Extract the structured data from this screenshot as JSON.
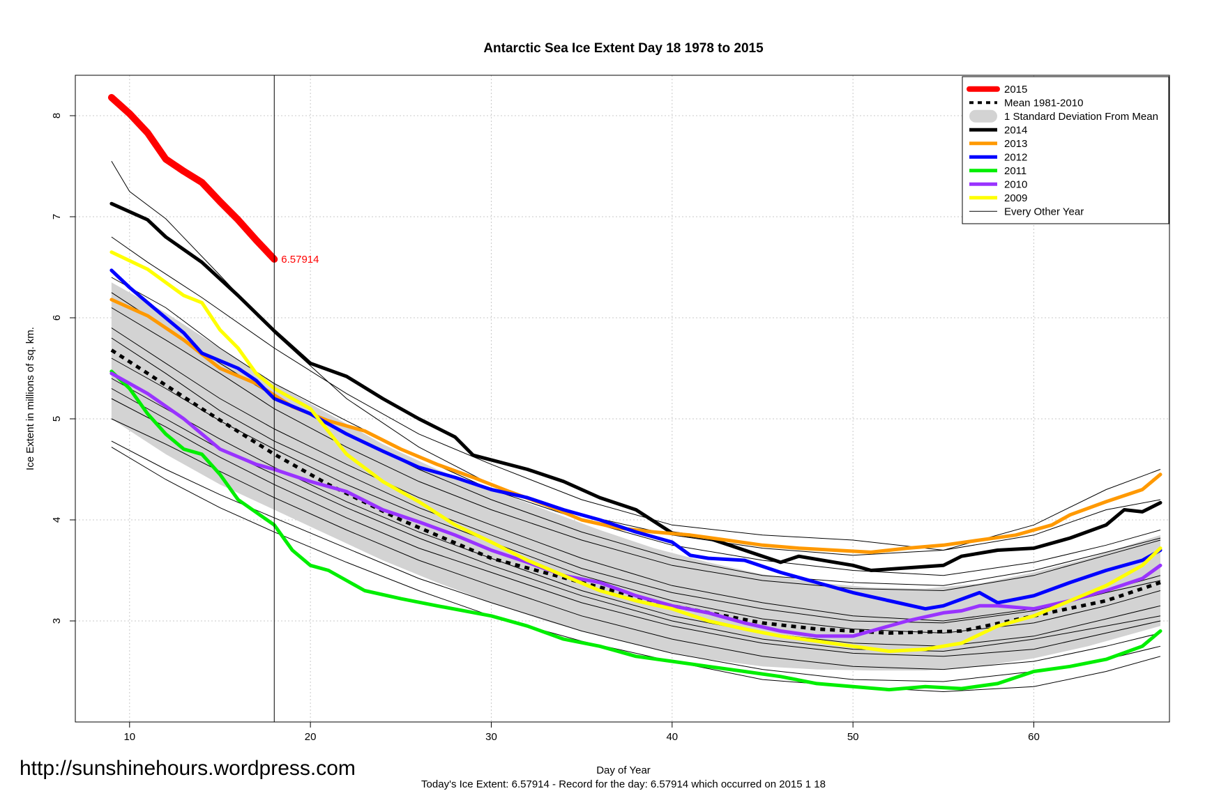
{
  "page": {
    "watermark": "http://sunshinehours.wordpress.com",
    "footer": "Today's Ice Extent: 6.57914  - Record for the day: 6.57914 which occurred on 2015 1 18"
  },
  "chart_data": {
    "type": "line",
    "title": "Antarctic Sea Ice Extent Day 18 1978 to 2015",
    "xlabel": "Day of Year",
    "ylabel": "Ice Extent in millions of sq. km.",
    "xlim": [
      7,
      67.5
    ],
    "ylim": [
      2,
      8.4
    ],
    "xticks": [
      10,
      20,
      30,
      40,
      50,
      60
    ],
    "yticks": [
      3,
      4,
      5,
      6,
      7,
      8
    ],
    "grid": true,
    "legend_position": "top-right",
    "current_day": 18,
    "end_label": "6.57914",
    "colors": {
      "2015": "#ff0000",
      "2014": "#000000",
      "2013": "#ff9900",
      "2012": "#0000ff",
      "2011": "#00ee00",
      "2010": "#9933ff",
      "2009": "#ffff00",
      "band": "#d3d3d3",
      "thin": "#000000"
    },
    "legend": [
      {
        "label": "2015",
        "style": "thick",
        "color": "#ff0000"
      },
      {
        "label": "Mean 1981-2010",
        "style": "dashed",
        "color": "#000000"
      },
      {
        "label": "1 Standard Deviation From Mean",
        "style": "band",
        "color": "#d3d3d3"
      },
      {
        "label": "2014",
        "style": "line",
        "color": "#000000"
      },
      {
        "label": "2013",
        "style": "line",
        "color": "#ff9900"
      },
      {
        "label": "2012",
        "style": "line",
        "color": "#0000ff"
      },
      {
        "label": "2011",
        "style": "line",
        "color": "#00ee00"
      },
      {
        "label": "2010",
        "style": "line",
        "color": "#9933ff"
      },
      {
        "label": "2009",
        "style": "line",
        "color": "#ffff00"
      },
      {
        "label": "Every Other Year",
        "style": "thin",
        "color": "#000000"
      }
    ],
    "band": {
      "x": [
        9,
        12,
        15,
        18,
        21,
        24,
        27,
        30,
        33,
        36,
        39,
        42,
        45,
        48,
        51,
        54,
        57,
        60,
        63,
        67
      ],
      "upper": [
        6.35,
        6.05,
        5.7,
        5.35,
        5.05,
        4.75,
        4.5,
        4.3,
        4.1,
        3.9,
        3.72,
        3.58,
        3.46,
        3.38,
        3.33,
        3.32,
        3.37,
        3.48,
        3.62,
        3.85
      ],
      "lower": [
        5.0,
        4.65,
        4.35,
        4.1,
        3.85,
        3.6,
        3.38,
        3.18,
        3.0,
        2.85,
        2.72,
        2.62,
        2.55,
        2.52,
        2.51,
        2.51,
        2.55,
        2.63,
        2.75,
        2.95
      ]
    },
    "mean": {
      "x": [
        9,
        11,
        14,
        18,
        21,
        25,
        30,
        35,
        40,
        45,
        48,
        52,
        56,
        60,
        64,
        67
      ],
      "y": [
        5.68,
        5.45,
        5.1,
        4.65,
        4.35,
        4.0,
        3.62,
        3.38,
        3.15,
        2.98,
        2.92,
        2.88,
        2.9,
        3.05,
        3.2,
        3.38
      ]
    },
    "series": [
      {
        "name": "2015",
        "x": [
          9,
          10,
          11,
          12,
          13,
          14,
          15,
          16,
          17,
          18
        ],
        "y": [
          8.18,
          8.02,
          7.83,
          7.57,
          7.45,
          7.34,
          7.15,
          6.97,
          6.77,
          6.579
        ]
      },
      {
        "name": "2014",
        "x": [
          9,
          11,
          12,
          14,
          16,
          18,
          20,
          22,
          24,
          26,
          28,
          29,
          32,
          34,
          36,
          38,
          40,
          42,
          44,
          46,
          47,
          50,
          51,
          55,
          56,
          58,
          60,
          62,
          64,
          65,
          66,
          67
        ],
        "y": [
          7.13,
          6.97,
          6.8,
          6.55,
          6.22,
          5.87,
          5.55,
          5.42,
          5.2,
          5.0,
          4.82,
          4.64,
          4.5,
          4.38,
          4.22,
          4.1,
          3.87,
          3.82,
          3.7,
          3.58,
          3.64,
          3.55,
          3.5,
          3.55,
          3.64,
          3.7,
          3.72,
          3.82,
          3.95,
          4.1,
          4.08,
          4.17
        ]
      },
      {
        "name": "2013",
        "x": [
          9,
          11,
          13,
          15,
          17,
          19,
          21,
          23,
          25,
          27,
          29,
          31,
          33,
          35,
          37,
          39,
          41,
          43,
          45,
          47,
          49,
          51,
          53,
          55,
          57,
          59,
          61,
          62,
          64,
          66,
          67
        ],
        "y": [
          6.18,
          6.02,
          5.78,
          5.5,
          5.35,
          5.12,
          4.98,
          4.88,
          4.7,
          4.55,
          4.42,
          4.28,
          4.15,
          4.0,
          3.92,
          3.88,
          3.85,
          3.8,
          3.75,
          3.72,
          3.7,
          3.68,
          3.72,
          3.75,
          3.8,
          3.85,
          3.95,
          4.05,
          4.18,
          4.3,
          4.45
        ]
      },
      {
        "name": "2012",
        "x": [
          9,
          10,
          11,
          13,
          14,
          16,
          17,
          18,
          20,
          22,
          24,
          26,
          28,
          30,
          32,
          34,
          36,
          38,
          40,
          41,
          42,
          44,
          46,
          48,
          50,
          52,
          54,
          55,
          57,
          58,
          60,
          62,
          64,
          66,
          67
        ],
        "y": [
          6.47,
          6.3,
          6.15,
          5.85,
          5.65,
          5.5,
          5.38,
          5.2,
          5.05,
          4.85,
          4.68,
          4.52,
          4.42,
          4.3,
          4.22,
          4.1,
          4.0,
          3.88,
          3.78,
          3.65,
          3.62,
          3.6,
          3.48,
          3.38,
          3.28,
          3.2,
          3.12,
          3.15,
          3.28,
          3.18,
          3.25,
          3.38,
          3.5,
          3.6,
          3.7
        ]
      },
      {
        "name": "2011",
        "x": [
          9,
          10,
          11,
          12,
          13,
          14,
          15,
          16,
          18,
          19,
          20,
          21,
          22,
          23,
          25,
          27,
          30,
          32,
          34,
          36,
          38,
          40,
          42,
          44,
          46,
          48,
          50,
          52,
          54,
          56,
          58,
          60,
          62,
          64,
          66,
          67
        ],
        "y": [
          5.47,
          5.3,
          5.05,
          4.85,
          4.7,
          4.65,
          4.45,
          4.2,
          3.95,
          3.7,
          3.55,
          3.5,
          3.4,
          3.3,
          3.22,
          3.15,
          3.05,
          2.95,
          2.82,
          2.75,
          2.65,
          2.6,
          2.55,
          2.5,
          2.45,
          2.38,
          2.35,
          2.32,
          2.35,
          2.33,
          2.38,
          2.5,
          2.55,
          2.62,
          2.75,
          2.9
        ]
      },
      {
        "name": "2010",
        "x": [
          9,
          11,
          13,
          15,
          17,
          18,
          20,
          22,
          24,
          26,
          28,
          30,
          32,
          34,
          36,
          38,
          40,
          42,
          44,
          46,
          48,
          50,
          51,
          53,
          55,
          56,
          57,
          58,
          60,
          62,
          64,
          66,
          67
        ],
        "y": [
          5.45,
          5.25,
          5.0,
          4.7,
          4.55,
          4.5,
          4.38,
          4.28,
          4.1,
          3.98,
          3.85,
          3.7,
          3.58,
          3.45,
          3.38,
          3.25,
          3.15,
          3.08,
          2.98,
          2.9,
          2.85,
          2.85,
          2.9,
          3.0,
          3.08,
          3.1,
          3.15,
          3.15,
          3.12,
          3.2,
          3.3,
          3.42,
          3.55
        ]
      },
      {
        "name": "2009",
        "x": [
          9,
          11,
          13,
          14,
          15,
          16,
          17,
          18,
          20,
          22,
          24,
          26,
          28,
          30,
          32,
          34,
          36,
          38,
          40,
          42,
          44,
          46,
          48,
          50,
          52,
          54,
          56,
          58,
          60,
          62,
          64,
          66,
          67
        ],
        "y": [
          6.65,
          6.48,
          6.22,
          6.15,
          5.88,
          5.7,
          5.45,
          5.3,
          5.1,
          4.65,
          4.38,
          4.18,
          3.95,
          3.78,
          3.6,
          3.45,
          3.3,
          3.2,
          3.12,
          3.0,
          2.92,
          2.85,
          2.8,
          2.75,
          2.7,
          2.72,
          2.78,
          2.95,
          3.05,
          3.2,
          3.35,
          3.55,
          3.72
        ]
      }
    ],
    "other_years": [
      {
        "x": [
          9,
          10,
          12,
          15,
          18,
          22,
          26,
          30,
          35,
          40,
          45,
          50,
          55,
          60,
          64,
          67
        ],
        "y": [
          7.55,
          7.25,
          6.98,
          6.42,
          5.85,
          5.2,
          4.72,
          4.35,
          4.05,
          3.85,
          3.72,
          3.65,
          3.7,
          3.95,
          4.3,
          4.5
        ]
      },
      {
        "x": [
          9,
          11,
          14,
          18,
          22,
          26,
          30,
          35,
          40,
          45,
          50,
          55,
          60,
          64,
          67
        ],
        "y": [
          6.8,
          6.55,
          6.2,
          5.7,
          5.25,
          4.85,
          4.55,
          4.2,
          3.95,
          3.85,
          3.8,
          3.7,
          3.85,
          4.1,
          4.2
        ]
      },
      {
        "x": [
          9,
          12,
          15,
          18,
          22,
          26,
          30,
          35,
          40,
          45,
          50,
          55,
          60,
          64,
          67
        ],
        "y": [
          6.4,
          6.1,
          5.7,
          5.35,
          4.98,
          4.62,
          4.3,
          4.0,
          3.75,
          3.6,
          3.5,
          3.45,
          3.58,
          3.75,
          3.9
        ]
      },
      {
        "x": [
          9,
          12,
          15,
          18,
          22,
          26,
          30,
          35,
          40,
          45,
          50,
          55,
          60,
          64,
          67
        ],
        "y": [
          6.1,
          5.78,
          5.45,
          5.1,
          4.72,
          4.38,
          4.1,
          3.8,
          3.55,
          3.4,
          3.32,
          3.3,
          3.45,
          3.65,
          3.8
        ]
      },
      {
        "x": [
          9,
          12,
          15,
          18,
          22,
          26,
          30,
          35,
          40,
          45,
          50,
          55,
          60,
          64,
          67
        ],
        "y": [
          5.9,
          5.55,
          5.2,
          4.9,
          4.55,
          4.22,
          3.95,
          3.62,
          3.35,
          3.18,
          3.05,
          3.0,
          3.12,
          3.3,
          3.45
        ]
      },
      {
        "x": [
          9,
          12,
          15,
          18,
          22,
          26,
          30,
          35,
          40,
          45,
          50,
          55,
          60,
          64,
          67
        ],
        "y": [
          5.6,
          5.3,
          4.98,
          4.7,
          4.35,
          4.05,
          3.78,
          3.45,
          3.2,
          3.02,
          2.92,
          2.88,
          2.98,
          3.15,
          3.3
        ]
      },
      {
        "x": [
          9,
          12,
          15,
          18,
          22,
          26,
          30,
          35,
          40,
          45,
          50,
          55,
          60,
          64,
          67
        ],
        "y": [
          5.4,
          5.1,
          4.8,
          4.52,
          4.18,
          3.88,
          3.62,
          3.3,
          3.05,
          2.88,
          2.78,
          2.75,
          2.85,
          3.02,
          3.15
        ]
      },
      {
        "x": [
          9,
          12,
          15,
          18,
          22,
          26,
          30,
          35,
          40,
          45,
          50,
          55,
          60,
          64,
          67
        ],
        "y": [
          5.2,
          4.92,
          4.62,
          4.35,
          4.02,
          3.72,
          3.48,
          3.18,
          2.95,
          2.78,
          2.68,
          2.65,
          2.72,
          2.88,
          3.0
        ]
      },
      {
        "x": [
          9,
          12,
          15,
          18,
          22,
          26,
          30,
          35,
          40,
          45,
          50,
          55,
          60,
          64,
          67
        ],
        "y": [
          5.0,
          4.75,
          4.48,
          4.22,
          3.9,
          3.6,
          3.35,
          3.05,
          2.82,
          2.65,
          2.55,
          2.52,
          2.6,
          2.75,
          2.88
        ]
      },
      {
        "x": [
          9,
          12,
          15,
          18,
          22,
          26,
          30,
          35,
          40,
          45,
          50,
          55,
          60,
          64,
          67
        ],
        "y": [
          4.78,
          4.5,
          4.25,
          4.02,
          3.72,
          3.42,
          3.18,
          2.9,
          2.68,
          2.52,
          2.42,
          2.4,
          2.5,
          2.62,
          2.75
        ]
      },
      {
        "x": [
          9,
          12,
          15,
          18,
          22,
          26,
          30,
          35,
          40,
          45,
          50,
          55,
          60,
          64,
          67
        ],
        "y": [
          4.72,
          4.4,
          4.12,
          3.88,
          3.58,
          3.3,
          3.05,
          2.8,
          2.6,
          2.42,
          2.35,
          2.3,
          2.35,
          2.5,
          2.65
        ]
      },
      {
        "x": [
          9,
          12,
          15,
          18,
          22,
          26,
          30,
          35,
          40,
          45,
          50,
          55,
          60,
          64,
          67
        ],
        "y": [
          5.3,
          5.0,
          4.7,
          4.45,
          4.12,
          3.82,
          3.55,
          3.25,
          3.0,
          2.82,
          2.72,
          2.7,
          2.82,
          2.95,
          3.05
        ]
      },
      {
        "x": [
          9,
          12,
          15,
          18,
          22,
          26,
          30,
          35,
          40,
          45,
          50,
          55,
          60,
          64,
          67
        ],
        "y": [
          5.8,
          5.45,
          5.08,
          4.78,
          4.45,
          4.12,
          3.85,
          3.52,
          3.28,
          3.12,
          3.0,
          2.98,
          3.1,
          3.28,
          3.4
        ]
      },
      {
        "x": [
          9,
          12,
          15,
          18,
          22,
          26,
          30,
          35,
          40,
          45,
          50,
          55,
          60,
          64,
          67
        ],
        "y": [
          6.25,
          5.9,
          5.55,
          5.22,
          4.85,
          4.5,
          4.2,
          3.88,
          3.62,
          3.45,
          3.38,
          3.35,
          3.5,
          3.68,
          3.82
        ]
      }
    ]
  }
}
